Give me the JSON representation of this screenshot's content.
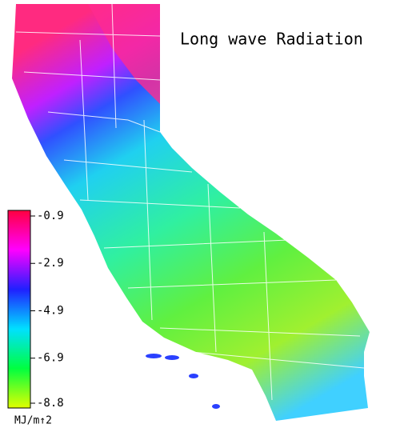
{
  "title": "Long wave Radiation",
  "colorbar": {
    "range": [
      -0.9,
      -8.8
    ],
    "ticks": [
      -0.9,
      -2.9,
      -4.9,
      -6.9,
      -8.8
    ],
    "unit": "MJ/m↑2"
  }
}
